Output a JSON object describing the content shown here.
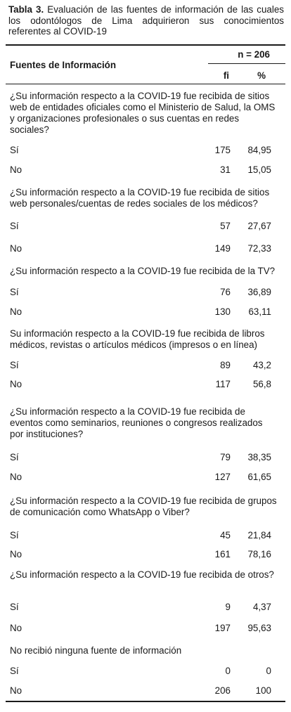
{
  "caption": {
    "label": "Tabla 3.",
    "text": " Evaluación de las fuentes de información de las cuales los odontólogos de Lima adquirieron sus conocimientos referentes al COVID-19"
  },
  "header": {
    "source_col": "Fuentes de Información",
    "n": "n = 206",
    "fi": "fi",
    "pct": "%"
  },
  "rows": [
    {
      "question": "¿Su información respecto a la COVID-19 fue recibida de sitios web de entidades oficiales como el Ministerio de Salud, la OMS y organizaciones profesionales o sus cuentas en redes sociales?",
      "si_label": "Sí",
      "si_fi": "175",
      "si_pct": "84,95",
      "no_label": "No",
      "no_fi": "31",
      "no_pct": "15,05"
    },
    {
      "question": "¿Su información respecto a la COVID-19 fue recibida de sitios web personales/cuentas de redes sociales de los médicos?",
      "si_label": "Sí",
      "si_fi": "57",
      "si_pct": "27,67",
      "no_label": "No",
      "no_fi": "149",
      "no_pct": "72,33"
    },
    {
      "question": "¿Su información respecto a la COVID-19 fue recibida de la TV?",
      "si_label": "Sí",
      "si_fi": "76",
      "si_pct": "36,89",
      "no_label": "No",
      "no_fi": "130",
      "no_pct": "63,11"
    },
    {
      "question": "Su información respecto a la COVID-19 fue recibida de libros médicos, revistas o artículos médicos (impresos o en línea)",
      "si_label": "Sí",
      "si_fi": "89",
      "si_pct": "43,2",
      "no_label": "No",
      "no_fi": "117",
      "no_pct": "56,8"
    },
    {
      "question": "¿Su información respecto a la COVID-19 fue recibida de eventos como seminarios, reuniones o congresos realizados por instituciones?",
      "si_label": "Sí",
      "si_fi": "79",
      "si_pct": "38,35",
      "no_label": "No",
      "no_fi": "127",
      "no_pct": "61,65"
    },
    {
      "question": "¿Su información respecto a la COVID-19 fue recibida de grupos de comunicación como WhatsApp o Viber?",
      "si_label": "Sí",
      "si_fi": "45",
      "si_pct": "21,84",
      "no_label": "No",
      "no_fi": "161",
      "no_pct": "78,16"
    },
    {
      "question": "¿Su información respecto a la COVID-19 fue recibida de otros?",
      "si_label": "Sí",
      "si_fi": "9",
      "si_pct": "4,37",
      "no_label": "No",
      "no_fi": "197",
      "no_pct": "95,63"
    },
    {
      "question": "No recibió ninguna fuente de información",
      "si_label": "Sí",
      "si_fi": "0",
      "si_pct": "0",
      "no_label": "No",
      "no_fi": "206",
      "no_pct": "100"
    }
  ]
}
